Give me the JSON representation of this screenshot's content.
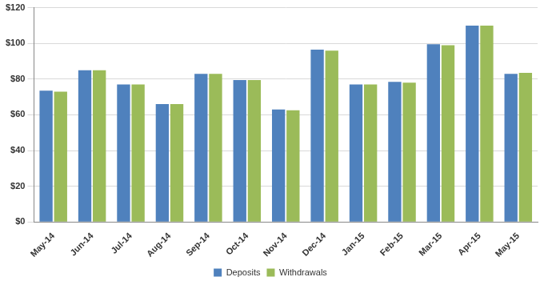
{
  "chart_data": {
    "type": "bar",
    "categories": [
      "May-14",
      "Jun-14",
      "Jul-14",
      "Aug-14",
      "Sep-14",
      "Oct-14",
      "Nov-14",
      "Dec-14",
      "Jan-15",
      "Feb-15",
      "Mar-15",
      "Apr-15",
      "May-15"
    ],
    "series": [
      {
        "name": "Deposits",
        "color": "#4f81bd",
        "values": [
          73.5,
          85,
          77,
          66,
          83,
          79.5,
          63,
          96.5,
          77,
          78.5,
          99.5,
          110,
          83
        ]
      },
      {
        "name": "Withdrawals",
        "color": "#9bbb59",
        "values": [
          73,
          85,
          77,
          66,
          83,
          79.5,
          62.5,
          96,
          77,
          78,
          99,
          110,
          83.5
        ]
      }
    ],
    "ylim": [
      0,
      120
    ],
    "yticks": [
      {
        "value": 0,
        "label": "$0"
      },
      {
        "value": 20,
        "label": "$20"
      },
      {
        "value": 40,
        "label": "$40"
      },
      {
        "value": 60,
        "label": "$60"
      },
      {
        "value": 80,
        "label": "$80"
      },
      {
        "value": 100,
        "label": "$100"
      },
      {
        "value": 120,
        "label": "$120"
      }
    ],
    "grid": true,
    "legend": "bottom"
  }
}
